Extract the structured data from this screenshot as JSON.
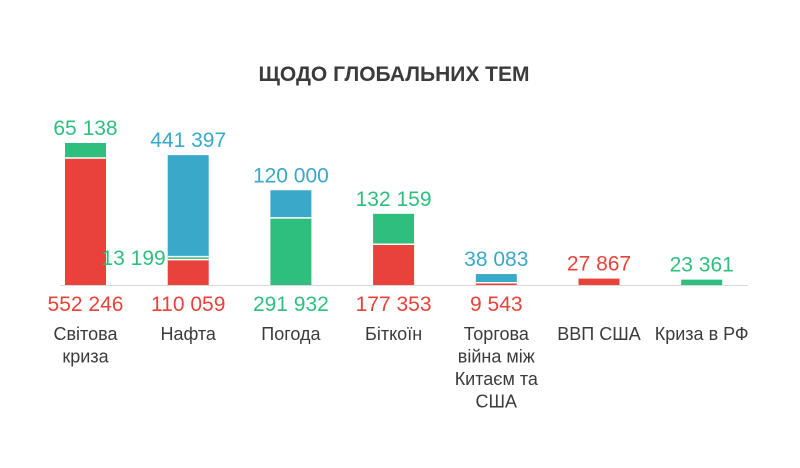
{
  "chart_data": {
    "type": "bar",
    "stacked": true,
    "title": "ЩОДО ГЛОБАЛЬНИХ ТЕМ",
    "xlabel": "",
    "ylabel": "",
    "grid": false,
    "legend": "none",
    "colors": {
      "red": "#e8423a",
      "green": "#2ebf7f",
      "blue": "#3aa8c9",
      "baseline": "#d9d9d9"
    },
    "categories": [
      {
        "label_lines": [
          "Світова",
          "криза"
        ],
        "segments": [
          {
            "value": 552246,
            "label": "552 246",
            "color": "red"
          },
          {
            "value": 65138,
            "label": "65 138",
            "color": "green"
          }
        ]
      },
      {
        "label_lines": [
          "Нафта"
        ],
        "segments": [
          {
            "value": 110059,
            "label": "110 059",
            "color": "red"
          },
          {
            "value": 13199,
            "label": "13 199",
            "color": "green"
          },
          {
            "value": 441397,
            "label": "441 397",
            "color": "blue"
          }
        ]
      },
      {
        "label_lines": [
          "Погода"
        ],
        "segments": [
          {
            "value": 291932,
            "label": "291 932",
            "color": "green"
          },
          {
            "value": 120000,
            "label": "120 000",
            "color": "blue"
          }
        ]
      },
      {
        "label_lines": [
          "Біткоїн"
        ],
        "segments": [
          {
            "value": 177353,
            "label": "177 353",
            "color": "red"
          },
          {
            "value": 132159,
            "label": "132 159",
            "color": "green"
          }
        ]
      },
      {
        "label_lines": [
          "Торгова",
          "війна між",
          "Китаєм та",
          "США"
        ],
        "segments": [
          {
            "value": 9543,
            "label": "9 543",
            "color": "red"
          },
          {
            "value": 38083,
            "label": "38 083",
            "color": "blue"
          }
        ]
      },
      {
        "label_lines": [
          "ВВП США"
        ],
        "segments": [
          {
            "value": 27867,
            "label": "27 867",
            "color": "red"
          }
        ]
      },
      {
        "label_lines": [
          "Криза в РФ"
        ],
        "segments": [
          {
            "value": 23361,
            "label": "23 361",
            "color": "green"
          }
        ]
      }
    ]
  }
}
